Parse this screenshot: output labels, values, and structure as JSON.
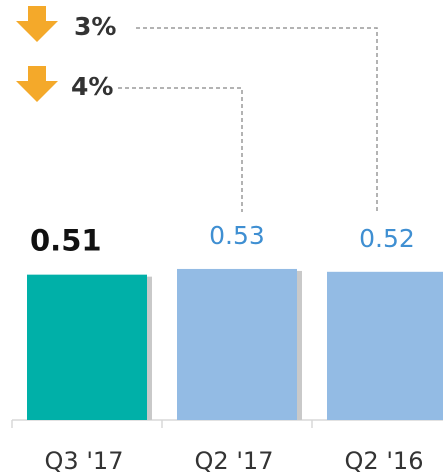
{
  "chart_data": {
    "type": "bar",
    "categories": [
      "Q3 '17",
      "Q2 '17",
      "Q2 '16"
    ],
    "values": [
      0.51,
      0.53,
      0.52
    ],
    "colors": [
      "#00b0a8",
      "#93bbe4",
      "#93bbe4"
    ],
    "value_label_colors": [
      "#111111",
      "#3f8fd2",
      "#3f8fd2"
    ],
    "ylim": [
      0,
      1
    ],
    "annotations": [
      "3%",
      "4%"
    ]
  }
}
